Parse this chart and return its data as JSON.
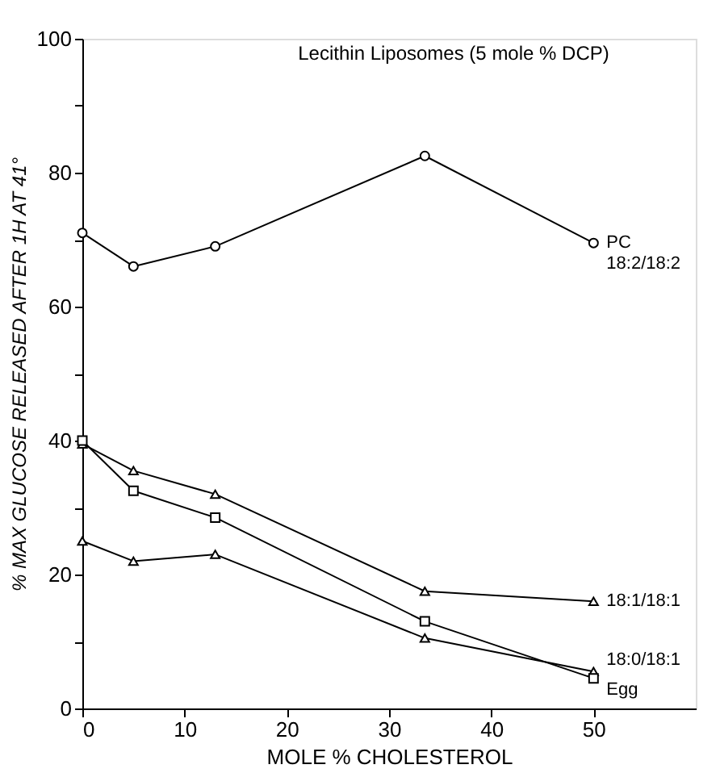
{
  "chart_data": {
    "type": "line",
    "title": "Lecithin Liposomes (5 mole % DCP)",
    "xlabel": "MOLE % CHOLESTEROL",
    "ylabel": "% MAX GLUCOSE RELEASED AFTER 1H  AT 41°",
    "x": [
      0,
      5,
      13,
      33.5,
      50
    ],
    "xlim": [
      0,
      60
    ],
    "xticks": [
      0,
      10,
      20,
      30,
      40,
      50
    ],
    "ylim": [
      0,
      100
    ],
    "yticks": [
      0,
      {
        "value": 10,
        "label": null
      },
      20,
      {
        "value": 30,
        "label": null
      },
      40,
      {
        "value": 50,
        "label": null
      },
      60,
      {
        "value": 70,
        "label": null
      },
      80,
      {
        "value": 90,
        "label": null
      },
      100
    ],
    "grid": false,
    "legend": false,
    "line_style": "solid",
    "series": [
      {
        "name": "PC 18:2/18:2",
        "color": "#000000",
        "marker": "circle",
        "values": [
          71,
          66,
          69,
          82.5,
          69.5
        ]
      },
      {
        "name": "18:1/18:1",
        "color": "#000000",
        "marker": "triangle",
        "values": [
          39.5,
          35.5,
          32,
          17.5,
          16
        ]
      },
      {
        "name": "18:0/18:1",
        "color": "#000000",
        "marker": "triangle",
        "values": [
          25,
          22,
          23,
          10.5,
          5.5
        ]
      },
      {
        "name": "Egg",
        "color": "#000000",
        "marker": "square",
        "values": [
          40,
          32.5,
          28.5,
          13,
          4.5
        ]
      }
    ]
  }
}
